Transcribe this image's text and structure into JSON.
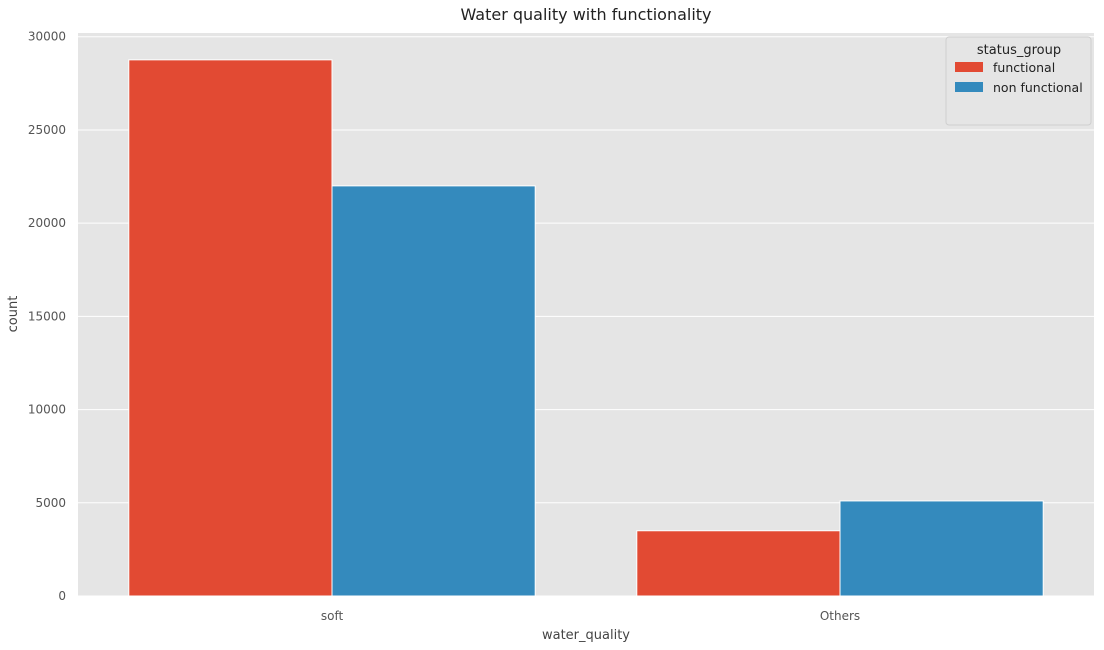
{
  "chart_data": {
    "type": "bar",
    "title": "Water quality with functionality",
    "xlabel": "water_quality",
    "ylabel": "count",
    "categories": [
      "soft",
      "Others"
    ],
    "series": [
      {
        "name": "functional",
        "color": "#E24A33",
        "values": [
          28760,
          3500
        ]
      },
      {
        "name": "non functional",
        "color": "#348ABD",
        "values": [
          22000,
          5100
        ]
      }
    ],
    "yticks": [
      0,
      5000,
      10000,
      15000,
      20000,
      25000,
      30000
    ],
    "ylim": [
      0,
      30200
    ],
    "grid": true,
    "background": "#E5E5E5",
    "legend": {
      "title": "status_group",
      "position": "top-right"
    }
  }
}
